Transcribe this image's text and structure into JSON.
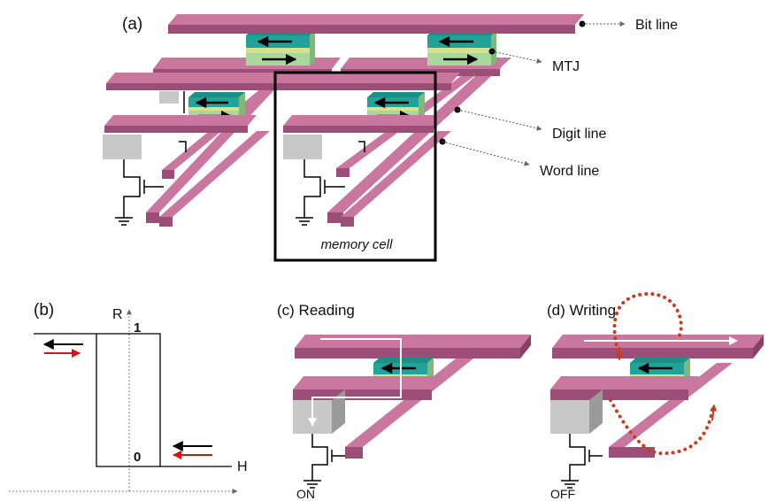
{
  "panel_a": {
    "label": "(a)",
    "callouts": {
      "bit_line": "Bit line",
      "mtj": "MTJ",
      "digit_line": "Digit line",
      "word_line": "Word line"
    },
    "memory_cell": "memory cell"
  },
  "panel_b": {
    "label": "(b)",
    "r_axis": "R",
    "h_axis": "H",
    "level_high": "1",
    "level_low": "0"
  },
  "panel_c": {
    "label": "(c) Reading",
    "state": "ON"
  },
  "panel_d": {
    "label": "(d) Writing",
    "state": "OFF"
  },
  "colors": {
    "line_top": "#c9779e",
    "line_front": "#9c4d78",
    "mtj_top": "#22a39a",
    "mtj_layer": "#a9d99a",
    "write_arrow": "#cc3a1f",
    "transistor": "#c8c8c8"
  }
}
